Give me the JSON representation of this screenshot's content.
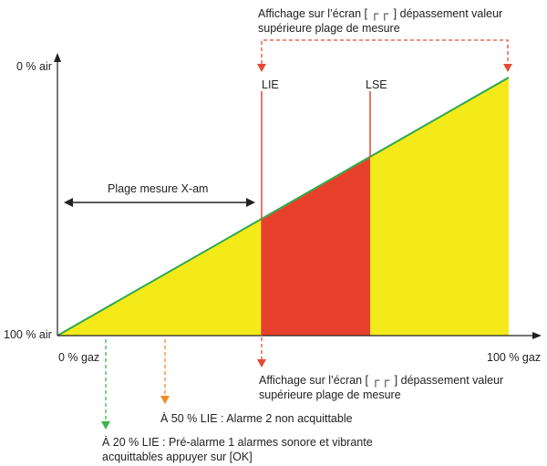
{
  "colors": {
    "yellow": "#f4ea1a",
    "red": "#e8412b",
    "green_line": "#2fa84f",
    "axis": "#222222",
    "arrow_red": "#e34a33",
    "arrow_green": "#3bb54a",
    "arrow_orange": "#f08a22"
  },
  "axes": {
    "y_top": "0 % air",
    "y_bottom": "100 % air",
    "x_left": "0 % gaz",
    "x_right": "100 % gaz"
  },
  "markers": {
    "lie": "LIE",
    "lse": "LSE"
  },
  "range_label": "Plage mesure X-am",
  "overrange": {
    "prefix": "Affichage sur l’écran [",
    "glyph": "┌┌",
    "suffix": "] dépassement valeur",
    "line2": "supérieure plage de mesure"
  },
  "underrange": {
    "prefix": "Affichage sur l’écran [",
    "glyph": "┌┌",
    "suffix": "] dépassement valeur",
    "line2": "supérieure plage de mesure"
  },
  "alarms": {
    "a2": "À 50 % LIE : Alarme 2 non acquittable",
    "a1_line1": "À 20 % LIE : Pré-alarme 1 alarmes sonore et vibrante",
    "a1_line2": "acquittables appuyer sur [OK]"
  }
}
